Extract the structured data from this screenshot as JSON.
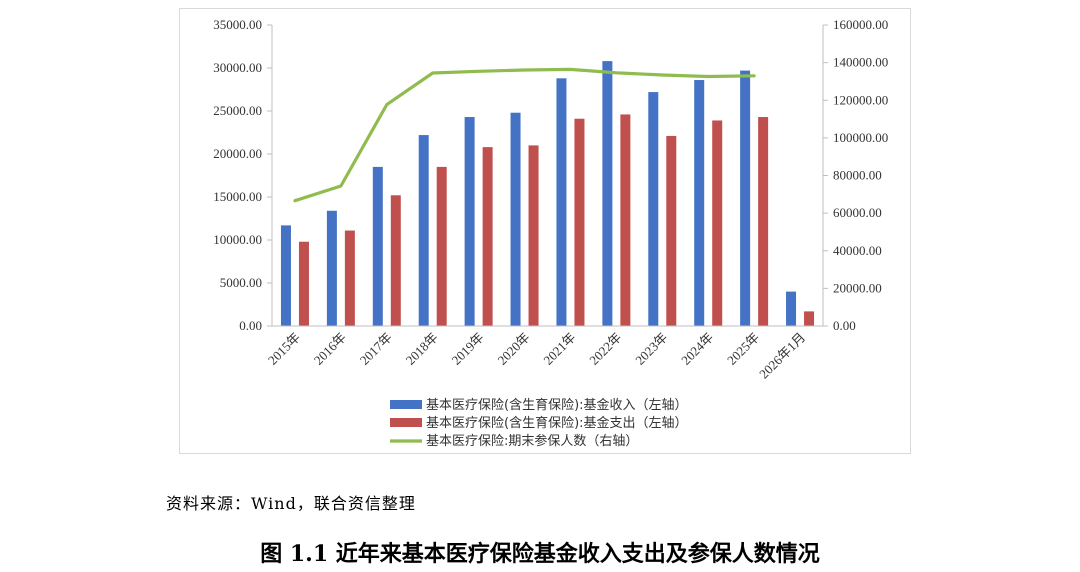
{
  "chart_data": {
    "type": "bar",
    "categories": [
      "2015年",
      "2016年",
      "2017年",
      "2018年",
      "2019年",
      "2020年",
      "2021年",
      "2022年",
      "2023年",
      "2024年",
      "2025年",
      "2026年1月"
    ],
    "series": [
      {
        "name": "基本医疗保险(含生育保险):基金收入（左轴）",
        "type": "bar",
        "axis": "left",
        "color": "#4472c4",
        "values": [
          11700,
          13400,
          18500,
          22200,
          24300,
          24800,
          28800,
          30800,
          27200,
          28600,
          29700,
          4000
        ]
      },
      {
        "name": "基本医疗保险(含生育保险):基金支出（左轴）",
        "type": "bar",
        "axis": "left",
        "color": "#c0504d",
        "values": [
          9800,
          11100,
          15200,
          18500,
          20800,
          21000,
          24100,
          24600,
          22100,
          23900,
          24300,
          1700
        ]
      },
      {
        "name": "基本医疗保险:期末参保人数（右轴）",
        "type": "line",
        "axis": "right",
        "color": "#8fbb4f",
        "values": [
          66600,
          74400,
          117700,
          134500,
          135400,
          136100,
          136400,
          134600,
          133400,
          132600,
          133000,
          null
        ]
      }
    ],
    "left_axis": {
      "min": 0,
      "max": 35000,
      "step": 5000,
      "tick_labels": [
        "0.00",
        "5000.00",
        "10000.00",
        "15000.00",
        "20000.00",
        "25000.00",
        "30000.00",
        "35000.00"
      ]
    },
    "right_axis": {
      "min": 0,
      "max": 160000,
      "step": 20000,
      "tick_labels": [
        "0.00",
        "20000.00",
        "40000.00",
        "60000.00",
        "80000.00",
        "100000.00",
        "120000.00",
        "140000.00",
        "160000.00"
      ]
    },
    "grid": false,
    "legend_position": "bottom"
  },
  "source_text": "资料来源：Wind，联合资信整理",
  "caption": "图 1.1  近年来基本医疗保险基金收入支出及参保人数情况"
}
